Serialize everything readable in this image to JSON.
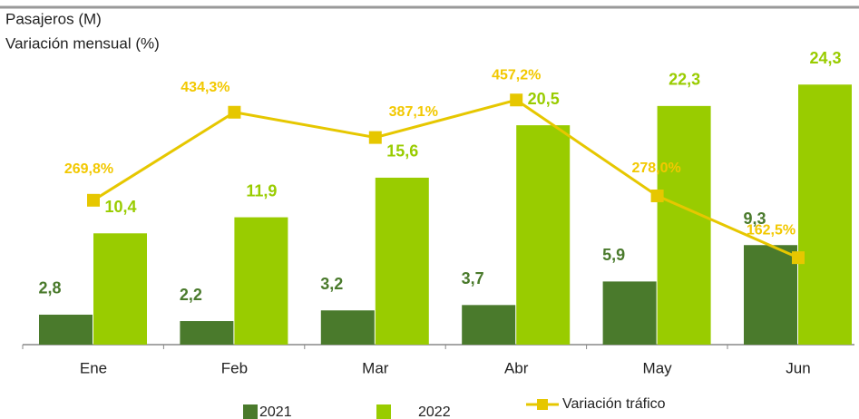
{
  "chart_data": {
    "type": "bar",
    "y_label": "Pasajeros (M)",
    "y2_label": "Variación mensual (%)",
    "categories": [
      "Ene",
      "Feb",
      "Mar",
      "Abr",
      "May",
      "Jun"
    ],
    "series": [
      {
        "name": "2021",
        "color": "#4a7a2c",
        "values": [
          2.8,
          2.2,
          3.2,
          3.7,
          5.9,
          9.3
        ],
        "value_labels": [
          "2,8",
          "2,2",
          "3,2",
          "3,7",
          "5,9",
          "9,3"
        ]
      },
      {
        "name": "2022",
        "color": "#99cc00",
        "values": [
          10.4,
          11.9,
          15.6,
          20.5,
          22.3,
          24.3
        ],
        "value_labels": [
          "10,4",
          "11,9",
          "15,6",
          "20,5",
          "22,3",
          "24,3"
        ]
      },
      {
        "name": "Variación tráfico",
        "type": "line",
        "axis": "y2",
        "color": "#e6c700",
        "values": [
          269.8,
          434.3,
          387.1,
          457.2,
          278.0,
          162.5
        ],
        "value_labels": [
          "269,8%",
          "434,3%",
          "387,1%",
          "457,2%",
          "278,0%",
          "162,5%"
        ]
      }
    ],
    "ylim": [
      0,
      25
    ],
    "y2lim": [
      0,
      500
    ]
  }
}
